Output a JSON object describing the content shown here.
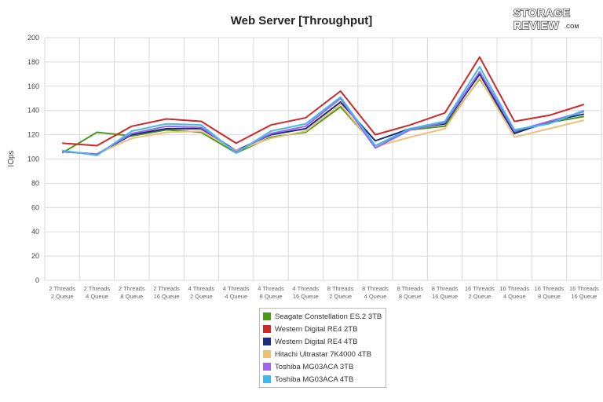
{
  "chart_data": {
    "type": "line",
    "title": "Web Server [Throughput]",
    "ylabel": "IOps",
    "xlabel": "",
    "ylim": [
      0,
      200
    ],
    "yticks": [
      0,
      20,
      40,
      60,
      80,
      100,
      120,
      140,
      160,
      180,
      200
    ],
    "grid": true,
    "legend_position": "bottom",
    "categories": [
      [
        "2 Threads",
        "2 Queue"
      ],
      [
        "2 Threads",
        "4 Queue"
      ],
      [
        "2 Threads",
        "8 Queue"
      ],
      [
        "2 Threads",
        "16 Queue"
      ],
      [
        "4 Threads",
        "2 Queue"
      ],
      [
        "4 Threads",
        "4 Queue"
      ],
      [
        "4 Threads",
        "8 Queue"
      ],
      [
        "4 Threads",
        "16 Queue"
      ],
      [
        "8 Threads",
        "2 Queue"
      ],
      [
        "8 Threads",
        "4 Queue"
      ],
      [
        "8 Threads",
        "8 Queue"
      ],
      [
        "8 Threads",
        "16 Queue"
      ],
      [
        "16 Threads",
        "2 Queue"
      ],
      [
        "16 Threads",
        "4 Queue"
      ],
      [
        "16 Threads",
        "8 Queue"
      ],
      [
        "16 Threads",
        "16 Queue"
      ]
    ],
    "series": [
      {
        "name": "Seagate Constellation ES.2 3TB",
        "color": "#4a9a17",
        "values": [
          105,
          122,
          119,
          124,
          122,
          105,
          118,
          122,
          143,
          111,
          124,
          127,
          166,
          122,
          130,
          135
        ]
      },
      {
        "name": "Western Digital RE4 2TB",
        "color": "#cc2a2a",
        "values": [
          113,
          111,
          127,
          133,
          131,
          113,
          128,
          134,
          156,
          120,
          128,
          138,
          184,
          131,
          136,
          145
        ]
      },
      {
        "name": "Western Digital RE4 4TB",
        "color": "#1c2d80",
        "values": [
          106,
          104,
          120,
          125,
          125,
          107,
          120,
          125,
          147,
          115,
          125,
          129,
          170,
          121,
          131,
          137
        ]
      },
      {
        "name": "Hitachi Ultrastar 7K4000 4TB",
        "color": "#f0c07a",
        "values": [
          106,
          104,
          117,
          122,
          123,
          107,
          117,
          123,
          145,
          110,
          118,
          125,
          167,
          118,
          125,
          132
        ]
      },
      {
        "name": "Toshiba MG03ACA 3TB",
        "color": "#9966ee",
        "values": [
          106,
          104,
          121,
          127,
          126,
          106,
          121,
          127,
          150,
          109,
          124,
          130,
          172,
          123,
          131,
          139
        ]
      },
      {
        "name": "Toshiba MG03ACA 4TB",
        "color": "#44b8ee",
        "values": [
          107,
          103,
          123,
          129,
          128,
          105,
          123,
          129,
          151,
          111,
          125,
          131,
          176,
          124,
          129,
          140
        ]
      }
    ]
  },
  "logo": {
    "line1": "STORAGE",
    "line2": "REVIEW",
    "suffix": ".COM"
  }
}
